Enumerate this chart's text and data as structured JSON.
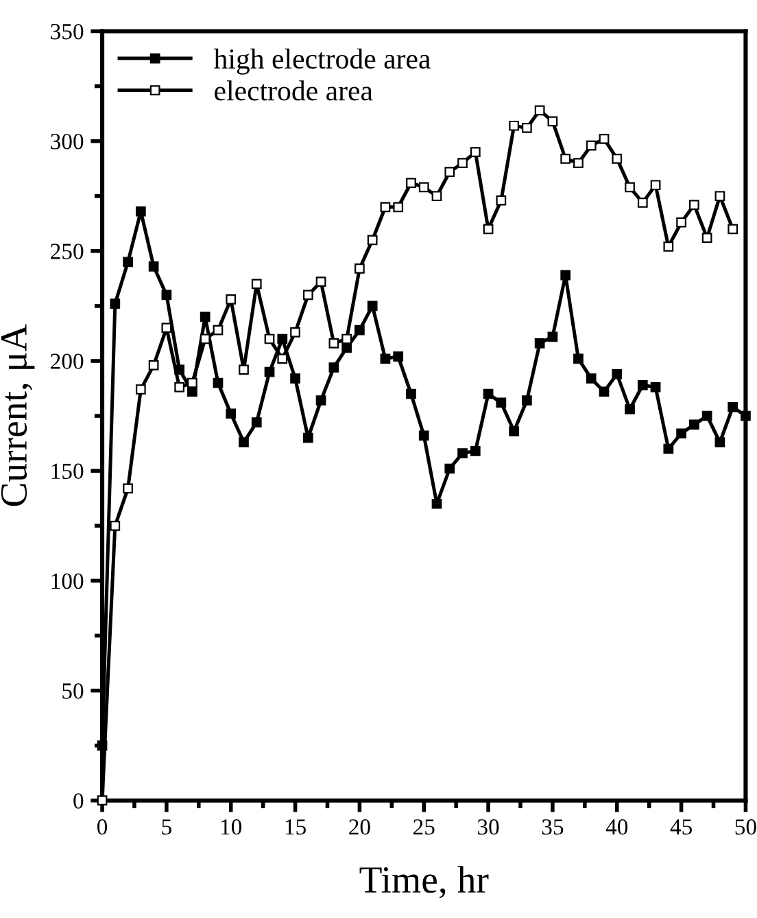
{
  "chart_data": {
    "type": "line",
    "xlabel": "Time, hr",
    "ylabel": "Current, μA",
    "x": [
      0,
      1,
      2,
      3,
      4,
      5,
      6,
      7,
      8,
      9,
      10,
      11,
      12,
      13,
      14,
      15,
      16,
      17,
      18,
      19,
      20,
      21,
      22,
      23,
      24,
      25,
      26,
      27,
      28,
      29,
      30,
      31,
      32,
      33,
      34,
      35,
      36,
      37,
      38,
      39,
      40,
      41,
      42,
      43,
      44,
      45,
      46,
      47,
      48,
      49,
      50
    ],
    "series": [
      {
        "name": "high electrode area",
        "color": "#000000",
        "marker": "square",
        "values": [
          25,
          226,
          245,
          268,
          243,
          230,
          196,
          186,
          220,
          190,
          176,
          163,
          172,
          195,
          210,
          192,
          165,
          182,
          197,
          206,
          214,
          225,
          201,
          202,
          185,
          166,
          135,
          151,
          158,
          159,
          185,
          181,
          168,
          182,
          208,
          211,
          239,
          201,
          192,
          186,
          194,
          178,
          189,
          188,
          160,
          167,
          171,
          175,
          163,
          179,
          175
        ]
      },
      {
        "name": "electrode area",
        "color": "#000000",
        "marker": "square",
        "values": [
          0,
          125,
          142,
          187,
          198,
          215,
          188,
          190,
          210,
          214,
          228,
          196,
          235,
          210,
          201,
          213,
          230,
          236,
          208,
          210,
          242,
          255,
          270,
          270,
          281,
          279,
          275,
          286,
          290,
          295,
          260,
          273,
          307,
          306,
          314,
          309,
          292,
          290,
          298,
          301,
          292,
          279,
          272,
          280,
          252,
          263,
          271,
          256,
          275,
          260,
          null
        ]
      }
    ],
    "xlim": [
      0,
      50
    ],
    "xticks": [
      0,
      5,
      10,
      15,
      20,
      25,
      30,
      35,
      40,
      45,
      50
    ],
    "ylim": [
      0,
      350
    ],
    "yticks": [
      0,
      50,
      100,
      150,
      200,
      250,
      300,
      350
    ],
    "grid": false,
    "legend": "top left",
    "line_style": "solid"
  }
}
